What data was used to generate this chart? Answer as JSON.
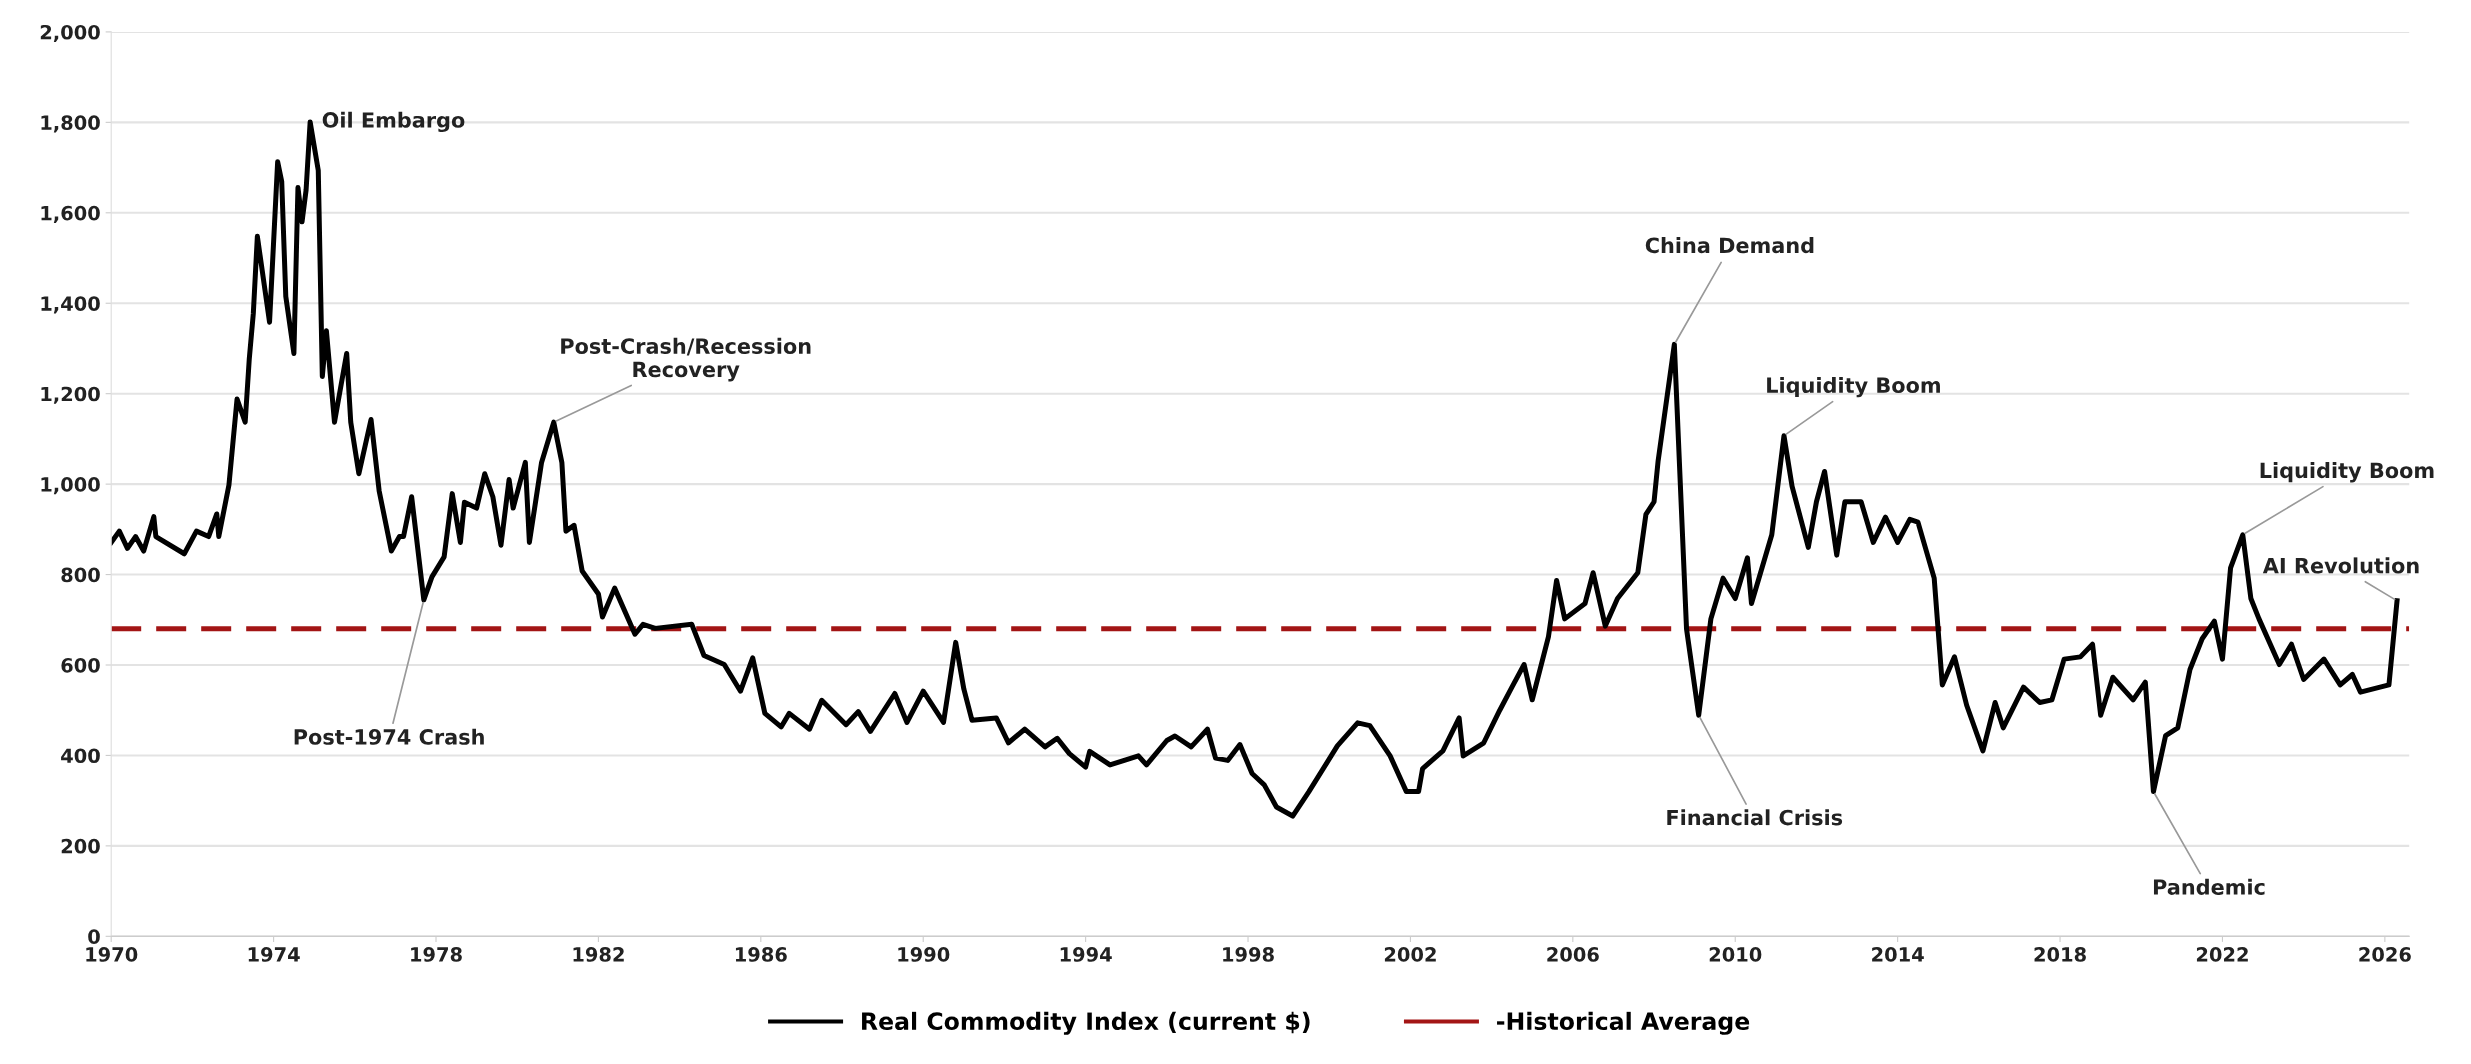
{
  "chart_data": {
    "type": "line",
    "x": [
      1970.0,
      1970.2,
      1970.4,
      1970.6,
      1970.8,
      1971.05,
      1971.1,
      1971.8,
      1972.1,
      1972.4,
      1972.6,
      1972.65,
      1972.9,
      1973.1,
      1973.3,
      1973.4,
      1973.5,
      1973.6,
      1973.9,
      1974.1,
      1974.2,
      1974.3,
      1974.5,
      1974.6,
      1974.7,
      1974.8,
      1974.9,
      1975.1,
      1975.2,
      1975.3,
      1975.5,
      1975.8,
      1975.9,
      1976.1,
      1976.4,
      1976.6,
      1976.9,
      1977.1,
      1977.2,
      1977.4,
      1977.5,
      1977.7,
      1977.9,
      1978.2,
      1978.4,
      1978.6,
      1978.7,
      1979.0,
      1979.2,
      1979.4,
      1979.6,
      1979.8,
      1979.9,
      1980.2,
      1980.3,
      1980.6,
      1980.9,
      1981.1,
      1981.2,
      1981.4,
      1981.6,
      1982.0,
      1982.1,
      1982.4,
      1982.9,
      1983.1,
      1983.4,
      1984.3,
      1984.6,
      1985.1,
      1985.5,
      1985.8,
      1986.1,
      1986.5,
      1986.7,
      1987.2,
      1987.5,
      1988.1,
      1988.4,
      1988.7,
      1989.3,
      1989.6,
      1990.0,
      1990.5,
      1990.8,
      1991.0,
      1991.2,
      1991.8,
      1992.1,
      1992.5,
      1993.0,
      1993.3,
      1993.6,
      1994.0,
      1994.1,
      1994.6,
      1995.3,
      1995.5,
      1996.0,
      1996.2,
      1996.6,
      1997.0,
      1997.2,
      1997.5,
      1997.8,
      1998.1,
      1998.4,
      1998.7,
      1999.1,
      1999.5,
      2000.2,
      2000.7,
      2001.0,
      2001.5,
      2001.9,
      2002.2,
      2002.3,
      2002.8,
      2003.2,
      2003.3,
      2003.8,
      2004.2,
      2004.5,
      2004.8,
      2005.0,
      2005.4,
      2005.6,
      2005.8,
      2006.3,
      2006.5,
      2006.8,
      2007.1,
      2007.6,
      2007.8,
      2008.0,
      2008.1,
      2008.5,
      2008.8,
      2009.1,
      2009.4,
      2009.7,
      2010.0,
      2010.3,
      2010.4,
      2010.9,
      2011.2,
      2011.4,
      2011.8,
      2012.0,
      2012.2,
      2012.5,
      2012.7,
      2013.1,
      2013.4,
      2013.7,
      2014.0,
      2014.3,
      2014.5,
      2014.9,
      2015.1,
      2015.4,
      2015.7,
      2016.1,
      2016.4,
      2016.6,
      2017.1,
      2017.5,
      2017.8,
      2018.1,
      2018.5,
      2018.8,
      2019.0,
      2019.3,
      2019.8,
      2020.1,
      2020.3,
      2020.6,
      2020.9,
      2021.2,
      2021.5,
      2021.8,
      2022.0,
      2022.2,
      2022.5,
      2022.7,
      2022.9,
      2023.4,
      2023.7,
      2024.0,
      2024.5,
      2024.9,
      2025.2,
      2025.4,
      2026.1,
      2026.3
    ],
    "series": [
      {
        "name": "Real Commodity Index (current $)",
        "color": "#000000",
        "values": [
          871,
          896,
          858,
          884,
          852,
          928,
          884,
          846,
          896,
          884,
          934,
          884,
          998,
          1188,
          1137,
          1276,
          1377,
          1548,
          1358,
          1713,
          1669,
          1415,
          1289,
          1656,
          1580,
          1650,
          1801,
          1694,
          1238,
          1339,
          1137,
          1289,
          1137,
          1023,
          1143,
          985,
          852,
          884,
          884,
          972,
          896,
          744,
          795,
          839,
          979,
          871,
          960,
          947,
          1023,
          972,
          865,
          1010,
          947,
          1048,
          871,
          1048,
          1137,
          1048,
          896,
          909,
          808,
          757,
          706,
          770,
          668,
          690,
          681,
          690,
          621,
          601,
          542,
          616,
          493,
          463,
          493,
          458,
          522,
          468,
          497,
          453,
          537,
          473,
          542,
          473,
          650,
          547,
          478,
          483,
          428,
          458,
          419,
          438,
          404,
          374,
          409,
          379,
          399,
          379,
          433,
          443,
          419,
          458,
          394,
          389,
          424,
          360,
          335,
          286,
          266,
          320,
          421,
          472,
          466,
          399,
          320,
          320,
          371,
          410,
          483,
          399,
          427,
          500,
          551,
          601,
          523,
          663,
          787,
          702,
          736,
          804,
          686,
          747,
          804,
          933,
          961,
          1051,
          1309,
          680,
          489,
          702,
          792,
          747,
          837,
          736,
          888,
          1107,
          995,
          860,
          961,
          1028,
          843,
          961,
          961,
          871,
          927,
          871,
          922,
          916,
          792,
          556,
          618,
          511,
          410,
          517,
          461,
          551,
          517,
          523,
          613,
          618,
          646,
          489,
          573,
          523,
          562,
          320,
          444,
          461,
          590,
          658,
          697,
          613,
          815,
          888,
          747,
          702,
          601,
          646,
          568,
          613,
          556,
          579,
          540,
          556,
          742
        ]
      }
    ],
    "ref_lines": [
      {
        "axis": "y",
        "value": 680,
        "label": "-Historical Average",
        "color": "#a31515",
        "line_style": "dashed"
      }
    ],
    "annotations": [
      {
        "text": "Oil Embargo",
        "x": 1974.9,
        "y": 1801
      },
      {
        "text": "Post-Crash/Recession\nRecovery",
        "x": 1980.9,
        "y": 1137
      },
      {
        "text": "Post-1974 Crash",
        "x": 1977.7,
        "y": 744
      },
      {
        "text": "China Demand",
        "x": 2008.5,
        "y": 1309
      },
      {
        "text": "Liquidity Boom",
        "x": 2011.2,
        "y": 1107
      },
      {
        "text": "Financial Crisis",
        "x": 2009.1,
        "y": 489
      },
      {
        "text": "Liquidity Boom",
        "x": 2022.5,
        "y": 888
      },
      {
        "text": "AI Revolution",
        "x": 2026.3,
        "y": 742
      },
      {
        "text": "Pandemic",
        "x": 2020.3,
        "y": 320
      }
    ],
    "xlim": [
      1970,
      2026.6
    ],
    "xticks": [
      1970,
      1974,
      1978,
      1982,
      1986,
      1990,
      1994,
      1998,
      2002,
      2006,
      2010,
      2014,
      2018,
      2022,
      2026
    ],
    "ylim": [
      0,
      2000
    ],
    "yticks": [
      0,
      200,
      400,
      600,
      800,
      {
        "value": 1000,
        "label": "1,000"
      },
      {
        "value": 1200,
        "label": "1,200"
      },
      {
        "value": 1400,
        "label": "1,400"
      },
      {
        "value": 1600,
        "label": "1,600"
      },
      {
        "value": 1800,
        "label": "1,800"
      },
      {
        "value": 2000,
        "label": "2,000"
      }
    ],
    "grid": "y",
    "legend": "bottom",
    "marker": "none",
    "line_style": "solid"
  }
}
